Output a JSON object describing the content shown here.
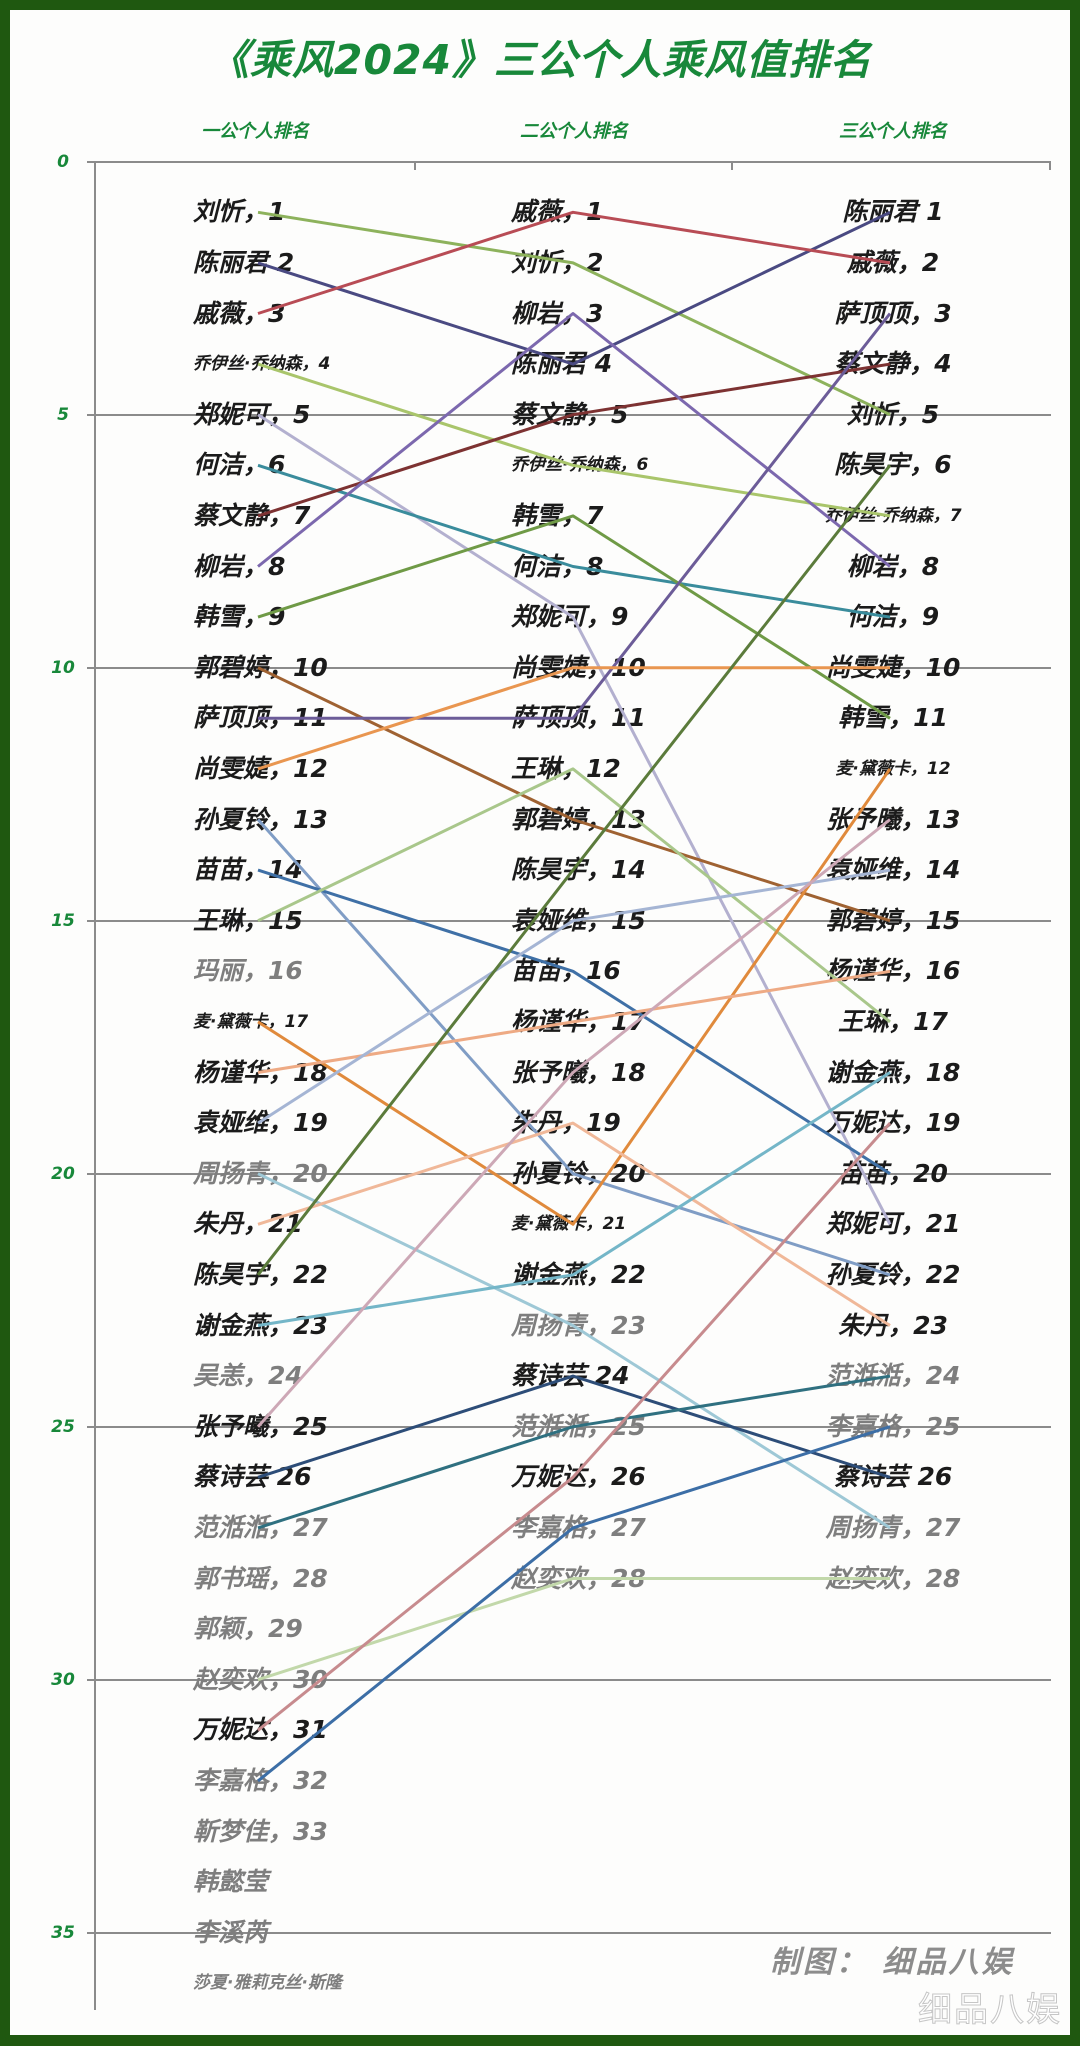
{
  "page": {
    "title": "《乘风2024》三公个人乘风值排名",
    "credit": "制图：  细品八娱",
    "watermark": "细品八娱"
  },
  "colors": {
    "border": "#1f5810",
    "accent_green": "#18883a",
    "label_text": "#1b1b1b",
    "label_muted": "#7e7e7e",
    "grid": "#8b8b8b"
  },
  "chart_data": {
    "type": "line",
    "title": "《乘风2024》三公个人乘风值排名",
    "xlabel": "",
    "ylabel": "",
    "categories": [
      "一公个人排名",
      "二公个人排名",
      "三公个人排名"
    ],
    "yticks": [
      0,
      5,
      10,
      15,
      20,
      25,
      30,
      35
    ],
    "ylim": [
      0,
      35
    ],
    "y_inverted": true,
    "grid": true,
    "legend": "none (direct labels at each point)",
    "series": [
      {
        "name": "刘忻",
        "values": [
          1,
          2,
          5
        ],
        "color": "#8db25c"
      },
      {
        "name": "陈丽君",
        "values": [
          2,
          4,
          1
        ],
        "color": "#4a4a82"
      },
      {
        "name": "戚薇",
        "values": [
          3,
          1,
          2
        ],
        "color": "#b84c55"
      },
      {
        "name": "乔伊丝·乔纳森",
        "values": [
          4,
          6,
          7
        ],
        "color": "#a9c56b"
      },
      {
        "name": "郑妮可",
        "values": [
          5,
          9,
          21
        ],
        "color": "#b3b0cf"
      },
      {
        "name": "何洁",
        "values": [
          6,
          8,
          9
        ],
        "color": "#3a8c9c"
      },
      {
        "name": "蔡文静",
        "values": [
          7,
          5,
          4
        ],
        "color": "#7d3232"
      },
      {
        "name": "柳岩",
        "values": [
          8,
          3,
          8
        ],
        "color": "#7c68ae"
      },
      {
        "name": "韩雪",
        "values": [
          9,
          7,
          11
        ],
        "color": "#6f9a46"
      },
      {
        "name": "郭碧婷",
        "values": [
          10,
          13,
          15
        ],
        "color": "#9f6232"
      },
      {
        "name": "萨顶顶",
        "values": [
          11,
          11,
          3
        ],
        "color": "#6c5c98"
      },
      {
        "name": "尚雯婕",
        "values": [
          12,
          10,
          10
        ],
        "color": "#e99650"
      },
      {
        "name": "孙夏铃",
        "values": [
          13,
          20,
          22
        ],
        "color": "#809dc5"
      },
      {
        "name": "苗苗",
        "values": [
          14,
          16,
          20
        ],
        "color": "#3f70a6"
      },
      {
        "name": "王琳",
        "values": [
          15,
          12,
          17
        ],
        "color": "#a9c78b"
      },
      {
        "name": "玛丽",
        "values": [
          16,
          null,
          null
        ],
        "color": null
      },
      {
        "name": "麦·黛薇卡",
        "values": [
          17,
          21,
          12
        ],
        "color": "#e08a3c"
      },
      {
        "name": "杨谨华",
        "values": [
          18,
          17,
          16
        ],
        "color": "#eeaa84"
      },
      {
        "name": "袁娅维",
        "values": [
          19,
          15,
          14
        ],
        "color": "#a5b5d4"
      },
      {
        "name": "周扬青",
        "values": [
          20,
          23,
          27
        ],
        "color": "#9ec8d6"
      },
      {
        "name": "朱丹",
        "values": [
          21,
          19,
          23
        ],
        "color": "#f0b899"
      },
      {
        "name": "陈昊宇",
        "values": [
          22,
          14,
          6
        ],
        "color": "#5b7b3b"
      },
      {
        "name": "谢金燕",
        "values": [
          23,
          22,
          18
        ],
        "color": "#74b6c8"
      },
      {
        "name": "吴恙",
        "values": [
          24,
          null,
          null
        ],
        "color": null
      },
      {
        "name": "张予曦",
        "values": [
          25,
          18,
          13
        ],
        "color": "#cda8b6"
      },
      {
        "name": "蔡诗芸",
        "values": [
          26,
          24,
          26
        ],
        "color": "#2d4d78"
      },
      {
        "name": "范湉湉",
        "values": [
          27,
          25,
          24
        ],
        "color": "#2f7080"
      },
      {
        "name": "郭书瑶",
        "values": [
          28,
          null,
          null
        ],
        "color": null
      },
      {
        "name": "郭颖",
        "values": [
          29,
          null,
          null
        ],
        "color": null
      },
      {
        "name": "赵奕欢",
        "values": [
          30,
          28,
          28
        ],
        "color": "#c2d8aa"
      },
      {
        "name": "万妮达",
        "values": [
          31,
          26,
          19
        ],
        "color": "#c78b8e"
      },
      {
        "name": "李嘉格",
        "values": [
          32,
          27,
          25
        ],
        "color": "#3c6ea6"
      },
      {
        "name": "靳梦佳",
        "values": [
          33,
          null,
          null
        ],
        "color": null
      }
    ]
  },
  "columns": [
    {
      "labels": [
        {
          "row": 1,
          "text": "刘忻，1"
        },
        {
          "row": 2,
          "text": "陈丽君 2"
        },
        {
          "row": 3,
          "text": "戚薇，3"
        },
        {
          "row": 4,
          "text": "乔伊丝·乔纳森，4",
          "small": true
        },
        {
          "row": 5,
          "text": "郑妮可，5"
        },
        {
          "row": 6,
          "text": "何洁，6"
        },
        {
          "row": 7,
          "text": "蔡文静，7"
        },
        {
          "row": 8,
          "text": "柳岩，8"
        },
        {
          "row": 9,
          "text": "韩雪，9"
        },
        {
          "row": 10,
          "text": "郭碧婷，10"
        },
        {
          "row": 11,
          "text": "萨顶顶，11"
        },
        {
          "row": 12,
          "text": "尚雯婕，12"
        },
        {
          "row": 13,
          "text": "孙夏铃，13"
        },
        {
          "row": 14,
          "text": "苗苗，14"
        },
        {
          "row": 15,
          "text": "王琳，15"
        },
        {
          "row": 16,
          "text": "玛丽，16",
          "muted": true
        },
        {
          "row": 17,
          "text": "麦·黛薇卡，17",
          "small": true
        },
        {
          "row": 18,
          "text": "杨谨华，18"
        },
        {
          "row": 19,
          "text": "袁娅维，19"
        },
        {
          "row": 20,
          "text": "周扬青，20",
          "muted": true
        },
        {
          "row": 21,
          "text": "朱丹，21"
        },
        {
          "row": 22,
          "text": "陈昊宇，22"
        },
        {
          "row": 23,
          "text": "谢金燕，23"
        },
        {
          "row": 24,
          "text": "吴恙，24",
          "muted": true
        },
        {
          "row": 25,
          "text": "张予曦，25"
        },
        {
          "row": 26,
          "text": "蔡诗芸 26"
        },
        {
          "row": 27,
          "text": "范湉湉，27",
          "muted": true
        },
        {
          "row": 28,
          "text": "郭书瑶，28",
          "muted": true
        },
        {
          "row": 29,
          "text": "郭颖，29",
          "muted": true
        },
        {
          "row": 30,
          "text": "赵奕欢，30",
          "muted": true
        },
        {
          "row": 31,
          "text": "万妮达，31"
        },
        {
          "row": 32,
          "text": "李嘉格，32",
          "muted": true
        },
        {
          "row": 33,
          "text": "靳梦佳，33",
          "muted": true
        },
        {
          "row": 34,
          "text": "韩懿莹",
          "muted": true
        },
        {
          "row": 35,
          "text": "李溪芮",
          "muted": true
        },
        {
          "row": 36,
          "text": "莎夏·雅莉克丝·斯隆",
          "muted": true,
          "small": true
        }
      ]
    },
    {
      "labels": [
        {
          "row": 1,
          "text": "戚薇，1"
        },
        {
          "row": 2,
          "text": "刘忻，2"
        },
        {
          "row": 3,
          "text": "柳岩，3"
        },
        {
          "row": 4,
          "text": "陈丽君 4"
        },
        {
          "row": 5,
          "text": "蔡文静，5"
        },
        {
          "row": 6,
          "text": "乔伊丝·乔纳森，6",
          "small": true
        },
        {
          "row": 7,
          "text": "韩雪，7"
        },
        {
          "row": 8,
          "text": "何洁，8"
        },
        {
          "row": 9,
          "text": "郑妮可，9"
        },
        {
          "row": 10,
          "text": "尚雯婕，10"
        },
        {
          "row": 11,
          "text": "萨顶顶，11"
        },
        {
          "row": 12,
          "text": "王琳，12"
        },
        {
          "row": 13,
          "text": "郭碧婷，13"
        },
        {
          "row": 14,
          "text": "陈昊宇，14"
        },
        {
          "row": 15,
          "text": "袁娅维，15"
        },
        {
          "row": 16,
          "text": "苗苗，16"
        },
        {
          "row": 17,
          "text": "杨谨华，17"
        },
        {
          "row": 18,
          "text": "张予曦，18"
        },
        {
          "row": 19,
          "text": "朱丹，19"
        },
        {
          "row": 20,
          "text": "孙夏铃，20"
        },
        {
          "row": 21,
          "text": "麦·黛薇卡，21",
          "small": true
        },
        {
          "row": 22,
          "text": "谢金燕，22"
        },
        {
          "row": 23,
          "text": "周扬青，23",
          "muted": true
        },
        {
          "row": 24,
          "text": "蔡诗芸 24"
        },
        {
          "row": 25,
          "text": "范湉湉，25",
          "muted": true
        },
        {
          "row": 26,
          "text": "万妮达，26"
        },
        {
          "row": 27,
          "text": "李嘉格，27",
          "muted": true
        },
        {
          "row": 28,
          "text": "赵奕欢，28",
          "muted": true
        }
      ]
    },
    {
      "labels": [
        {
          "row": 1,
          "text": "陈丽君 1"
        },
        {
          "row": 2,
          "text": "戚薇，2"
        },
        {
          "row": 3,
          "text": "萨顶顶，3"
        },
        {
          "row": 4,
          "text": "蔡文静，4"
        },
        {
          "row": 5,
          "text": "刘忻，5"
        },
        {
          "row": 6,
          "text": "陈昊宇，6"
        },
        {
          "row": 7,
          "text": "乔伊丝·乔纳森，7",
          "small": true
        },
        {
          "row": 8,
          "text": "柳岩，8"
        },
        {
          "row": 9,
          "text": "何洁，9"
        },
        {
          "row": 10,
          "text": "尚雯婕，10"
        },
        {
          "row": 11,
          "text": "韩雪，11"
        },
        {
          "row": 12,
          "text": "麦·黛薇卡，12",
          "small": true
        },
        {
          "row": 13,
          "text": "张予曦，13"
        },
        {
          "row": 14,
          "text": "袁娅维，14"
        },
        {
          "row": 15,
          "text": "郭碧婷，15"
        },
        {
          "row": 16,
          "text": "杨谨华，16"
        },
        {
          "row": 17,
          "text": "王琳，17"
        },
        {
          "row": 18,
          "text": "谢金燕，18"
        },
        {
          "row": 19,
          "text": "万妮达，19"
        },
        {
          "row": 20,
          "text": "苗苗，20"
        },
        {
          "row": 21,
          "text": "郑妮可，21"
        },
        {
          "row": 22,
          "text": "孙夏铃，22"
        },
        {
          "row": 23,
          "text": "朱丹，23"
        },
        {
          "row": 24,
          "text": "范湉湉，24",
          "muted": true
        },
        {
          "row": 25,
          "text": "李嘉格，25",
          "muted": true
        },
        {
          "row": 26,
          "text": "蔡诗芸 26"
        },
        {
          "row": 27,
          "text": "周扬青，27",
          "muted": true
        },
        {
          "row": 28,
          "text": "赵奕欢，28",
          "muted": true
        }
      ]
    }
  ]
}
